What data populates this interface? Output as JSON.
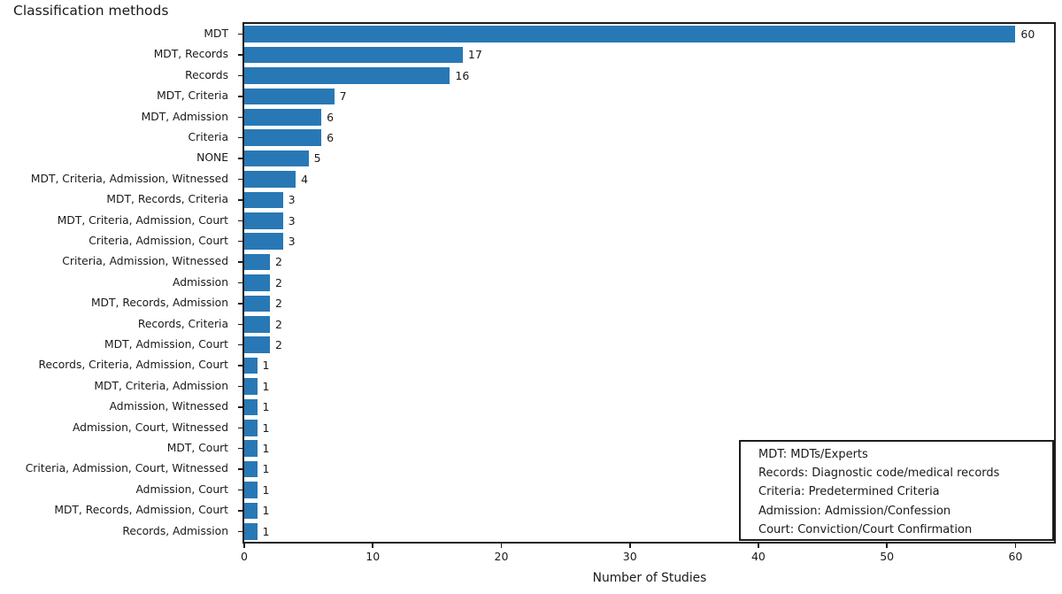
{
  "title": "Classification methods",
  "chart_data": {
    "type": "bar",
    "orientation": "horizontal",
    "title": "Classification methods",
    "xlabel": "Number of Studies",
    "ylabel": "",
    "categories": [
      "MDT",
      "MDT, Records",
      "Records",
      "MDT, Criteria",
      "MDT, Admission",
      "Criteria",
      "NONE",
      "MDT, Criteria, Admission, Witnessed",
      "MDT, Records, Criteria",
      "MDT, Criteria, Admission, Court",
      "Criteria, Admission, Court",
      "Criteria, Admission, Witnessed",
      "Admission",
      "MDT, Records, Admission",
      "Records, Criteria",
      "MDT, Admission, Court",
      "Records, Criteria, Admission, Court",
      "MDT, Criteria, Admission",
      "Admission, Witnessed",
      "Admission, Court, Witnessed",
      "MDT, Court",
      "Criteria, Admission, Court, Witnessed",
      "Admission, Court",
      "MDT, Records, Admission, Court",
      "Records, Admission"
    ],
    "values": [
      60,
      17,
      16,
      7,
      6,
      6,
      5,
      4,
      3,
      3,
      3,
      2,
      2,
      2,
      2,
      2,
      1,
      1,
      1,
      1,
      1,
      1,
      1,
      1,
      1
    ],
    "xticks": [
      0,
      10,
      20,
      30,
      40,
      50,
      60
    ],
    "xlim": [
      0,
      63
    ],
    "grid": false,
    "bar_color": "#2878b5",
    "value_labels_shown": true,
    "legend": {
      "position": "lower right",
      "lines": [
        "MDT: MDTs/Experts",
        "Records: Diagnostic code/medical records",
        "Criteria: Predetermined Criteria",
        "Admission: Admission/Confession",
        "Court: Conviction/Court Confirmation"
      ]
    }
  }
}
